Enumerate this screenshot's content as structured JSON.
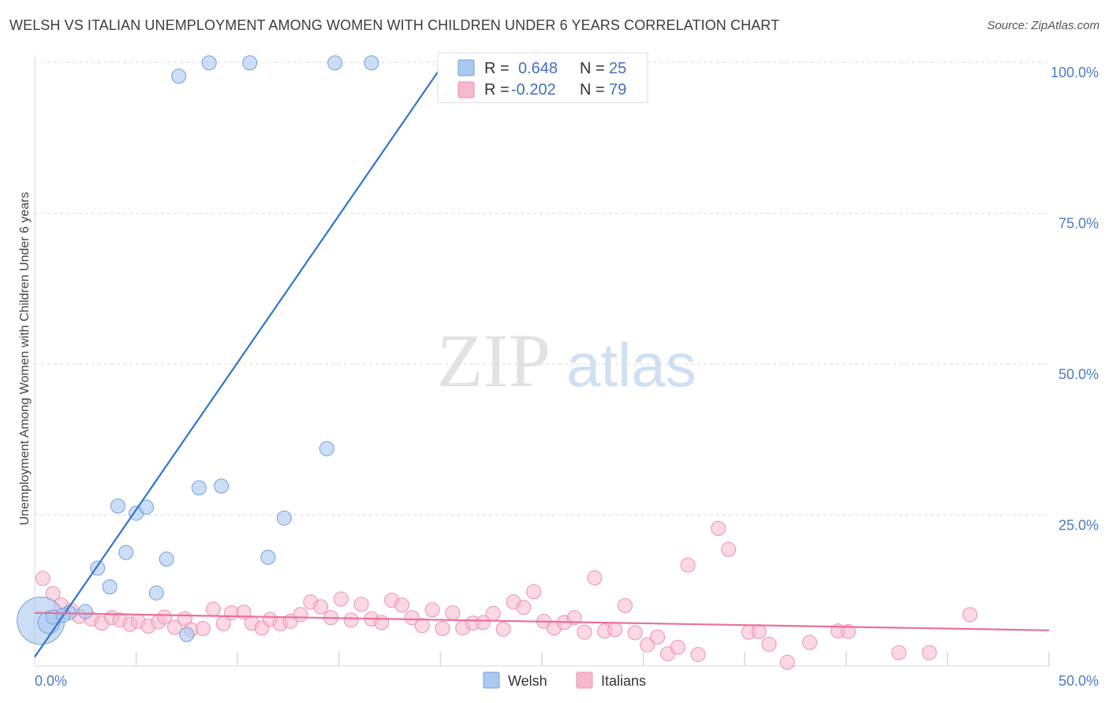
{
  "title": "WELSH VS ITALIAN UNEMPLOYMENT AMONG WOMEN WITH CHILDREN UNDER 6 YEARS CORRELATION CHART",
  "source": "Source: ZipAtlas.com",
  "watermark": {
    "zip": "ZIP",
    "atlas": "atlas"
  },
  "colors": {
    "welsh_fill": "#aac8f0",
    "welsh_stroke": "#6f9fdc",
    "welsh_line": "#2f74d0",
    "italian_fill": "#f7b8cc",
    "italian_stroke": "#ee8fb0",
    "italian_line": "#e8709a",
    "grid": "#d9d9d9",
    "tick_text": "#4a7cc4"
  },
  "legend_box": {
    "rows": [
      {
        "r_label": "R =",
        "r_value": "0.648",
        "n_label": "N =",
        "n_value": "25"
      },
      {
        "r_label": "R =",
        "r_value": "-0.202",
        "n_label": "N =",
        "n_value": "79"
      }
    ]
  },
  "chart_data": {
    "type": "scatter",
    "title": "WELSH VS ITALIAN UNEMPLOYMENT AMONG WOMEN WITH CHILDREN UNDER 6 YEARS CORRELATION CHART",
    "xlabel": "",
    "ylabel": "Unemployment Among Women with Children Under 6 years",
    "xlim": [
      0,
      50
    ],
    "ylim": [
      0,
      100
    ],
    "y_ticks": [
      {
        "value": 100,
        "label": "100.0%"
      },
      {
        "value": 75,
        "label": "75.0%"
      },
      {
        "value": 50,
        "label": "50.0%"
      },
      {
        "value": 25,
        "label": "25.0%"
      }
    ],
    "x_tick_labels": [
      {
        "value": 0,
        "label": "0.0%"
      },
      {
        "value": 50,
        "label": "50.0%"
      }
    ],
    "x_minor_ticks": [
      5,
      10,
      15,
      20,
      25,
      30,
      35,
      40,
      45,
      50
    ],
    "legend": [
      "Welsh",
      "Italians"
    ],
    "series": [
      {
        "name": "Welsh",
        "points": [
          [
            0.3,
            7.5
          ],
          [
            0.7,
            7.2
          ],
          [
            1.7,
            8.8
          ],
          [
            2.5,
            9.0
          ],
          [
            3.1,
            16.2
          ],
          [
            3.7,
            13.1
          ],
          [
            4.1,
            26.5
          ],
          [
            4.5,
            18.8
          ],
          [
            5.0,
            25.3
          ],
          [
            5.5,
            26.3
          ],
          [
            6.0,
            12.1
          ],
          [
            6.5,
            17.7
          ],
          [
            7.1,
            97.7
          ],
          [
            7.5,
            5.2
          ],
          [
            8.1,
            29.5
          ],
          [
            8.6,
            99.9
          ],
          [
            9.2,
            29.8
          ],
          [
            10.6,
            99.9
          ],
          [
            11.5,
            18.0
          ],
          [
            12.3,
            24.5
          ],
          [
            14.4,
            36.0
          ],
          [
            14.8,
            99.9
          ],
          [
            16.6,
            99.9
          ],
          [
            0.9,
            8.1
          ],
          [
            1.4,
            8.4
          ]
        ],
        "sizes": [
          30,
          14,
          10,
          10,
          10,
          10,
          10,
          10,
          10,
          10,
          10,
          10,
          10,
          10,
          10,
          10,
          10,
          10,
          10,
          10,
          10,
          10,
          10,
          10,
          10
        ],
        "trend": {
          "x": [
            0,
            20.2
          ],
          "y": [
            1.5,
            100
          ]
        }
      },
      {
        "name": "Italians",
        "points": [
          [
            0.4,
            14.5
          ],
          [
            0.9,
            12.0
          ],
          [
            1.3,
            10.1
          ],
          [
            1.8,
            9.2
          ],
          [
            2.2,
            8.2
          ],
          [
            2.8,
            7.8
          ],
          [
            3.3,
            7.1
          ],
          [
            3.8,
            8.0
          ],
          [
            4.2,
            7.6
          ],
          [
            4.7,
            6.9
          ],
          [
            5.1,
            7.4
          ],
          [
            5.6,
            6.6
          ],
          [
            6.1,
            7.3
          ],
          [
            6.4,
            8.1
          ],
          [
            6.9,
            6.4
          ],
          [
            7.4,
            7.8
          ],
          [
            7.7,
            6.0
          ],
          [
            8.3,
            6.2
          ],
          [
            8.8,
            9.4
          ],
          [
            9.3,
            7.0
          ],
          [
            9.7,
            8.8
          ],
          [
            10.3,
            8.9
          ],
          [
            10.7,
            7.1
          ],
          [
            11.2,
            6.3
          ],
          [
            11.6,
            7.7
          ],
          [
            12.1,
            7.0
          ],
          [
            12.6,
            7.4
          ],
          [
            13.1,
            8.5
          ],
          [
            13.6,
            10.6
          ],
          [
            14.1,
            9.8
          ],
          [
            14.6,
            8.0
          ],
          [
            15.1,
            11.1
          ],
          [
            15.6,
            7.6
          ],
          [
            16.1,
            10.2
          ],
          [
            16.6,
            7.8
          ],
          [
            17.1,
            7.2
          ],
          [
            17.6,
            10.9
          ],
          [
            18.1,
            10.1
          ],
          [
            18.6,
            8.0
          ],
          [
            19.1,
            6.7
          ],
          [
            19.6,
            9.3
          ],
          [
            20.1,
            6.2
          ],
          [
            20.6,
            8.8
          ],
          [
            21.1,
            6.3
          ],
          [
            21.6,
            7.1
          ],
          [
            22.1,
            7.2
          ],
          [
            22.6,
            8.7
          ],
          [
            23.1,
            6.1
          ],
          [
            23.6,
            10.6
          ],
          [
            24.1,
            9.7
          ],
          [
            24.6,
            12.3
          ],
          [
            25.1,
            7.4
          ],
          [
            25.6,
            6.3
          ],
          [
            26.1,
            7.2
          ],
          [
            26.6,
            8.0
          ],
          [
            27.1,
            5.6
          ],
          [
            27.6,
            14.6
          ],
          [
            28.1,
            5.8
          ],
          [
            28.6,
            6.0
          ],
          [
            29.1,
            10.0
          ],
          [
            29.6,
            5.5
          ],
          [
            30.2,
            3.5
          ],
          [
            30.7,
            4.8
          ],
          [
            31.2,
            2.0
          ],
          [
            31.7,
            3.1
          ],
          [
            32.2,
            16.7
          ],
          [
            32.7,
            1.9
          ],
          [
            33.7,
            22.8
          ],
          [
            34.2,
            19.3
          ],
          [
            35.2,
            5.6
          ],
          [
            35.7,
            5.7
          ],
          [
            36.2,
            3.6
          ],
          [
            37.1,
            0.6
          ],
          [
            38.2,
            3.9
          ],
          [
            39.6,
            5.8
          ],
          [
            40.1,
            5.7
          ],
          [
            42.6,
            2.2
          ],
          [
            44.1,
            2.2
          ],
          [
            46.1,
            8.5
          ]
        ],
        "trend": {
          "x": [
            0,
            50
          ],
          "y": [
            8.8,
            5.9
          ]
        }
      }
    ]
  }
}
